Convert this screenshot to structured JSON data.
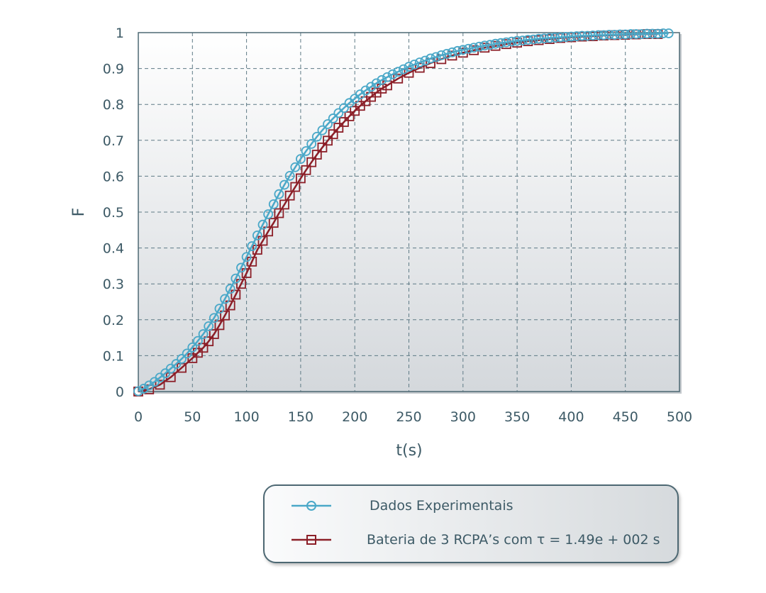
{
  "chart_data": {
    "type": "line",
    "xlabel": "t(s)",
    "ylabel": "F",
    "xlim": [
      0,
      500
    ],
    "ylim": [
      0,
      1
    ],
    "xticks": [
      "0",
      "50",
      "100",
      "150",
      "200",
      "250",
      "300",
      "350",
      "400",
      "450",
      "500"
    ],
    "yticks": [
      "0",
      "0.1",
      "0.2",
      "0.3",
      "0.4",
      "0.5",
      "0.6",
      "0.7",
      "0.8",
      "0.9",
      "1"
    ],
    "grid": true,
    "legend_position": "below",
    "series": [
      {
        "name": "Dados Experimentais",
        "marker": "circle",
        "color": "#4aa8c8",
        "x": [
          0,
          5,
          10,
          15,
          20,
          25,
          30,
          35,
          40,
          45,
          50,
          55,
          60,
          65,
          70,
          75,
          80,
          85,
          90,
          95,
          100,
          105,
          110,
          115,
          120,
          125,
          130,
          135,
          140,
          145,
          150,
          155,
          160,
          165,
          170,
          175,
          180,
          185,
          190,
          195,
          200,
          205,
          210,
          215,
          220,
          225,
          230,
          235,
          240,
          245,
          250,
          255,
          260,
          265,
          270,
          275,
          280,
          285,
          290,
          295,
          300,
          305,
          310,
          315,
          320,
          325,
          330,
          335,
          340,
          345,
          350,
          355,
          360,
          365,
          370,
          375,
          380,
          385,
          390,
          395,
          400,
          405,
          410,
          415,
          420,
          425,
          430,
          435,
          440,
          445,
          450,
          455,
          460,
          465,
          470,
          475,
          480,
          485,
          490
        ],
        "y": [
          0.001,
          0.008,
          0.017,
          0.027,
          0.039,
          0.051,
          0.064,
          0.077,
          0.091,
          0.106,
          0.123,
          0.141,
          0.16,
          0.182,
          0.205,
          0.231,
          0.258,
          0.286,
          0.315,
          0.345,
          0.375,
          0.405,
          0.435,
          0.465,
          0.494,
          0.522,
          0.55,
          0.576,
          0.601,
          0.625,
          0.648,
          0.67,
          0.69,
          0.71,
          0.728,
          0.745,
          0.761,
          0.776,
          0.79,
          0.804,
          0.816,
          0.828,
          0.839,
          0.849,
          0.859,
          0.868,
          0.876,
          0.884,
          0.891,
          0.898,
          0.905,
          0.911,
          0.917,
          0.922,
          0.928,
          0.932,
          0.937,
          0.941,
          0.945,
          0.949,
          0.952,
          0.955,
          0.958,
          0.961,
          0.964,
          0.966,
          0.969,
          0.971,
          0.973,
          0.975,
          0.977,
          0.978,
          0.98,
          0.981,
          0.983,
          0.984,
          0.985,
          0.986,
          0.987,
          0.988,
          0.989,
          0.99,
          0.991,
          0.991,
          0.992,
          0.993,
          0.993,
          0.994,
          0.994,
          0.995,
          0.995,
          0.996,
          0.996,
          0.996,
          0.997,
          0.997,
          0.997,
          0.998,
          0.998
        ]
      },
      {
        "name": "Bateria de 3 RCPA's com τ = 1.49e + 002 s",
        "marker": "square",
        "color": "#8c1f28",
        "x": [
          0,
          10,
          20,
          30,
          40,
          50,
          55,
          60,
          65,
          70,
          75,
          80,
          85,
          90,
          95,
          100,
          105,
          110,
          115,
          120,
          125,
          130,
          135,
          140,
          145,
          150,
          155,
          160,
          165,
          170,
          175,
          180,
          185,
          190,
          195,
          200,
          205,
          210,
          215,
          220,
          225,
          230,
          240,
          250,
          260,
          270,
          280,
          290,
          300,
          310,
          320,
          330,
          340,
          350,
          360,
          370,
          380,
          390,
          400,
          410,
          420,
          430,
          440,
          450,
          460,
          470,
          480
        ],
        "y": [
          0.0,
          0.006,
          0.019,
          0.04,
          0.066,
          0.093,
          0.108,
          0.122,
          0.14,
          0.16,
          0.185,
          0.212,
          0.24,
          0.27,
          0.3,
          0.33,
          0.362,
          0.395,
          0.42,
          0.446,
          0.47,
          0.497,
          0.521,
          0.546,
          0.57,
          0.594,
          0.617,
          0.639,
          0.66,
          0.68,
          0.699,
          0.717,
          0.735,
          0.751,
          0.767,
          0.782,
          0.796,
          0.809,
          0.821,
          0.833,
          0.844,
          0.853,
          0.872,
          0.888,
          0.902,
          0.915,
          0.926,
          0.936,
          0.944,
          0.951,
          0.958,
          0.963,
          0.968,
          0.972,
          0.976,
          0.979,
          0.982,
          0.985,
          0.987,
          0.989,
          0.99,
          0.992,
          0.993,
          0.994,
          0.995,
          0.996,
          0.996
        ]
      }
    ]
  },
  "legend": {
    "items": [
      {
        "label": "Dados Experimentais"
      },
      {
        "label": "Bateria de 3 RCPA’s com τ = 1.49e + 002 s"
      }
    ]
  }
}
